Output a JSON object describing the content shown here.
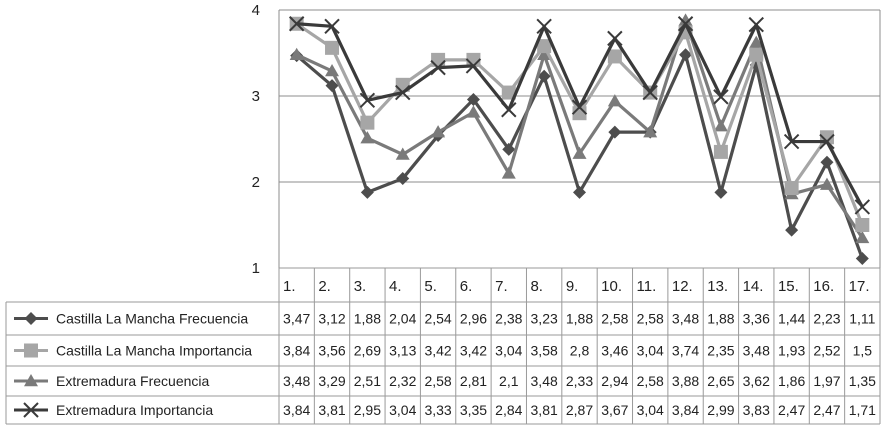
{
  "chart_data": {
    "type": "line",
    "title": "",
    "xlabel": "",
    "ylabel": "",
    "ylim": [
      1,
      4
    ],
    "yticks": [
      "1",
      "2",
      "3",
      "4"
    ],
    "grid": true,
    "legend_position": "table-left",
    "categories": [
      "1.",
      "2.",
      "3.",
      "4.",
      "5.",
      "6.",
      "7.",
      "8.",
      "9.",
      "10.",
      "11.",
      "12.",
      "13.",
      "14.",
      "15.",
      "16.",
      "17."
    ],
    "series": [
      {
        "name": "Castilla La Mancha Frecuencia",
        "color": "#4d4d4d",
        "marker": "diamond",
        "values": [
          3.47,
          3.12,
          1.88,
          2.04,
          2.54,
          2.96,
          2.38,
          3.23,
          1.88,
          2.58,
          2.58,
          3.48,
          1.88,
          3.36,
          1.44,
          2.23,
          1.11
        ],
        "labels": [
          "3,47",
          "3,12",
          "1,88",
          "2,04",
          "2,54",
          "2,96",
          "2,38",
          "3,23",
          "1,88",
          "2,58",
          "2,58",
          "3,48",
          "1,88",
          "3,36",
          "1,44",
          "2,23",
          "1,11"
        ]
      },
      {
        "name": "Castilla La Mancha Importancia",
        "color": "#a6a6a6",
        "marker": "square",
        "values": [
          3.84,
          3.56,
          2.69,
          3.13,
          3.42,
          3.42,
          3.04,
          3.58,
          2.8,
          3.46,
          3.04,
          3.74,
          2.35,
          3.48,
          1.93,
          2.52,
          1.5
        ],
        "labels": [
          "3,84",
          "3,56",
          "2,69",
          "3,13",
          "3,42",
          "3,42",
          "3,04",
          "3,58",
          "2,8",
          "3,46",
          "3,04",
          "3,74",
          "2,35",
          "3,48",
          "1,93",
          "2,52",
          "1,5"
        ]
      },
      {
        "name": "Extremadura Frecuencia",
        "color": "#7a7a7a",
        "marker": "triangle",
        "values": [
          3.48,
          3.29,
          2.51,
          2.32,
          2.58,
          2.81,
          2.1,
          3.48,
          2.33,
          2.94,
          2.58,
          3.88,
          2.65,
          3.62,
          1.86,
          1.97,
          1.35
        ],
        "labels": [
          "3,48",
          "3,29",
          "2,51",
          "2,32",
          "2,58",
          "2,81",
          "2,1",
          "3,48",
          "2,33",
          "2,94",
          "2,58",
          "3,88",
          "2,65",
          "3,62",
          "1,86",
          "1,97",
          "1,35"
        ]
      },
      {
        "name": "Extremadura  Importancia",
        "color": "#3a3a3a",
        "marker": "x",
        "values": [
          3.84,
          3.81,
          2.95,
          3.04,
          3.33,
          3.35,
          2.84,
          3.81,
          2.87,
          3.67,
          3.04,
          3.84,
          2.99,
          3.83,
          2.47,
          2.47,
          1.71
        ],
        "labels": [
          "3,84",
          "3,81",
          "2,95",
          "3,04",
          "3,33",
          "3,35",
          "2,84",
          "3,81",
          "2,87",
          "3,67",
          "3,04",
          "3,84",
          "2,99",
          "3,83",
          "2,47",
          "2,47",
          "1,71"
        ]
      }
    ]
  }
}
